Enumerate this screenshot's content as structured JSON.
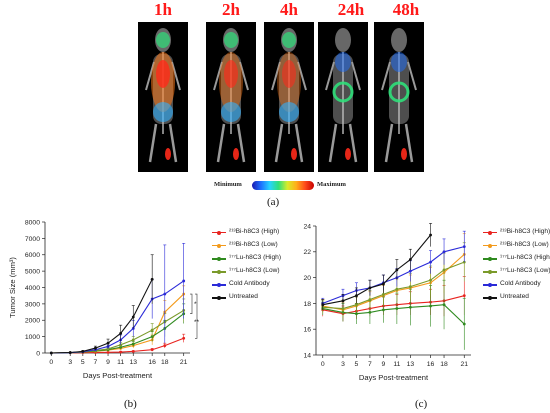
{
  "panel_a": {
    "timepoints": [
      "1h",
      "2h",
      "4h",
      "24h",
      "48h"
    ],
    "colorbar": {
      "min_label": "Minimum",
      "max_label": "Maximum"
    },
    "label": "(a)"
  },
  "chart_data": [
    {
      "type": "line",
      "panel_label": "(b)",
      "xlabel": "Days Post-treatment",
      "ylabel": "Tumor Size (mm³)",
      "xlim": [
        -1,
        22
      ],
      "ylim": [
        0,
        8000
      ],
      "xticks": [
        0,
        3,
        5,
        7,
        9,
        11,
        13,
        16,
        18,
        21
      ],
      "yticks": [
        0,
        1000,
        2000,
        3000,
        4000,
        5000,
        6000,
        7000,
        8000
      ],
      "xtick_labels": [
        "0",
        "3",
        "5",
        "7",
        "9",
        "11",
        "13",
        "16",
        "18",
        "21"
      ],
      "ytick_labels": [
        "0",
        "1000",
        "2000",
        "3000",
        "4000",
        "5000",
        "6000",
        "7000",
        "8000"
      ],
      "grid": false,
      "legend_position": "right",
      "series": [
        {
          "name": "²¹³Bi-h8C3 (High)",
          "color": "#e8231f",
          "x": [
            0,
            3,
            5,
            7,
            9,
            11,
            13,
            16,
            18,
            21
          ],
          "y": [
            0,
            10,
            20,
            30,
            40,
            60,
            100,
            200,
            450,
            900
          ],
          "err": [
            0,
            5,
            10,
            15,
            20,
            30,
            40,
            80,
            150,
            250
          ]
        },
        {
          "name": "²¹³Bi-h8C3 (Low)",
          "color": "#f39a1b",
          "x": [
            0,
            3,
            5,
            7,
            9,
            11,
            13,
            16,
            18,
            21
          ],
          "y": [
            0,
            20,
            60,
            100,
            180,
            280,
            450,
            800,
            2500,
            3600
          ],
          "err": [
            0,
            10,
            20,
            40,
            60,
            100,
            150,
            300,
            700,
            500
          ]
        },
        {
          "name": "¹⁷⁷Lu-h8C3 (High)",
          "color": "#2f8a1f",
          "x": [
            0,
            3,
            5,
            7,
            9,
            11,
            13,
            16,
            18,
            21
          ],
          "y": [
            0,
            20,
            60,
            120,
            200,
            350,
            550,
            1000,
            1500,
            2400
          ],
          "err": [
            0,
            10,
            20,
            40,
            60,
            100,
            150,
            300,
            500,
            600
          ]
        },
        {
          "name": "¹⁷⁷Lu-h8C3 (Low)",
          "color": "#7a9a2a",
          "x": [
            0,
            3,
            5,
            7,
            9,
            11,
            13,
            16,
            18,
            21
          ],
          "y": [
            0,
            20,
            80,
            150,
            250,
            500,
            800,
            1400,
            1900,
            2600
          ],
          "err": [
            0,
            10,
            20,
            50,
            80,
            150,
            200,
            400,
            500,
            700
          ]
        },
        {
          "name": "Cold Antibody",
          "color": "#2a2ad8",
          "x": [
            0,
            3,
            5,
            7,
            9,
            11,
            13,
            16,
            18,
            21
          ],
          "y": [
            0,
            20,
            80,
            200,
            400,
            800,
            1500,
            3300,
            3600,
            4400
          ],
          "err": [
            0,
            10,
            30,
            80,
            150,
            300,
            500,
            1200,
            3000,
            2300
          ]
        },
        {
          "name": "Untreated",
          "color": "#111111",
          "x": [
            0,
            3,
            5,
            7,
            9,
            11,
            13,
            16
          ],
          "y": [
            0,
            30,
            100,
            300,
            600,
            1200,
            2200,
            4500
          ],
          "err": [
            0,
            15,
            50,
            120,
            250,
            500,
            700,
            1500
          ]
        }
      ],
      "annotations": [
        "*",
        "**"
      ]
    },
    {
      "type": "line",
      "panel_label": "(c)",
      "xlabel": "Days Post-treatment",
      "ylabel": "Weight (g)",
      "xlim": [
        -1,
        22
      ],
      "ylim": [
        14,
        24
      ],
      "xticks": [
        0,
        3,
        5,
        7,
        9,
        11,
        13,
        16,
        18,
        21
      ],
      "yticks": [
        14,
        16,
        18,
        20,
        22,
        24
      ],
      "xtick_labels": [
        "0",
        "3",
        "5",
        "7",
        "9",
        "11",
        "13",
        "16",
        "18",
        "21"
      ],
      "ytick_labels": [
        "14",
        "16",
        "18",
        "20",
        "22",
        "24"
      ],
      "grid": false,
      "legend_position": "right",
      "series": [
        {
          "name": "²¹³Bi-h8C3 (High)",
          "color": "#e8231f",
          "x": [
            0,
            3,
            5,
            7,
            9,
            11,
            13,
            16,
            18,
            21
          ],
          "y": [
            17.5,
            17.2,
            17.4,
            17.6,
            17.8,
            17.9,
            18.0,
            18.1,
            18.2,
            18.6
          ],
          "err": [
            0.5,
            0.6,
            0.6,
            0.6,
            0.7,
            0.8,
            0.9,
            1.0,
            1.2,
            1.5
          ]
        },
        {
          "name": "²¹³Bi-h8C3 (Low)",
          "color": "#f39a1b",
          "x": [
            0,
            3,
            5,
            7,
            9,
            11,
            13,
            16,
            18,
            21
          ],
          "y": [
            17.8,
            17.5,
            17.8,
            18.2,
            18.6,
            19.0,
            19.2,
            19.6,
            20.4,
            21.8
          ],
          "err": [
            0.5,
            0.6,
            0.7,
            0.7,
            0.8,
            0.9,
            1.0,
            1.2,
            1.6,
            1.6
          ]
        },
        {
          "name": "¹⁷⁷Lu-h8C3 (High)",
          "color": "#2f8a1f",
          "x": [
            0,
            3,
            5,
            7,
            9,
            11,
            13,
            16,
            18,
            21
          ],
          "y": [
            17.6,
            17.3,
            17.2,
            17.3,
            17.5,
            17.6,
            17.7,
            17.8,
            17.9,
            16.4
          ],
          "err": [
            0.5,
            0.7,
            0.8,
            0.9,
            1.0,
            1.2,
            1.4,
            1.6,
            1.9,
            2.0
          ]
        },
        {
          "name": "¹⁷⁷Lu-h8C3 (Low)",
          "color": "#7a9a2a",
          "x": [
            0,
            3,
            5,
            7,
            9,
            11,
            13,
            16,
            18,
            21
          ],
          "y": [
            17.7,
            17.6,
            17.9,
            18.3,
            18.7,
            19.1,
            19.3,
            19.8,
            20.6,
            21.2
          ],
          "err": [
            0.5,
            0.6,
            0.6,
            0.7,
            0.8,
            0.9,
            1.0,
            1.1,
            1.3,
            1.5
          ]
        },
        {
          "name": "Cold Antibody",
          "color": "#2a2ad8",
          "x": [
            0,
            3,
            5,
            7,
            9,
            11,
            13,
            16,
            18,
            21
          ],
          "y": [
            18.0,
            18.6,
            19.0,
            19.2,
            19.6,
            20.0,
            20.5,
            21.2,
            22.0,
            22.4
          ],
          "err": [
            0.4,
            0.5,
            0.6,
            0.6,
            0.6,
            0.7,
            0.8,
            0.9,
            1.0,
            1.2
          ]
        },
        {
          "name": "Untreated",
          "color": "#111111",
          "x": [
            0,
            3,
            5,
            7,
            9,
            11,
            13,
            16
          ],
          "y": [
            17.9,
            18.2,
            18.6,
            19.2,
            19.5,
            20.6,
            21.4,
            23.3
          ],
          "err": [
            0.4,
            0.5,
            0.6,
            0.6,
            0.7,
            0.8,
            0.8,
            0.9
          ]
        }
      ]
    }
  ]
}
